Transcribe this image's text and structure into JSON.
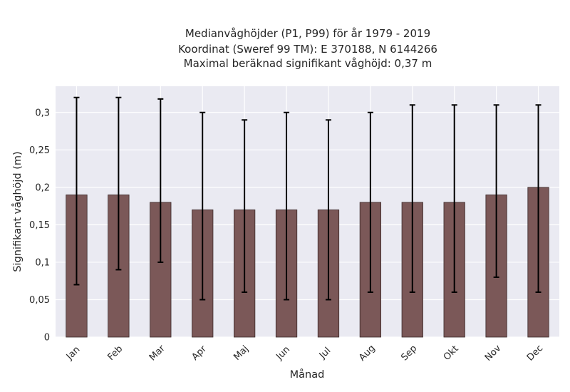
{
  "chart_data": {
    "type": "bar",
    "title_lines": [
      "Medianvåghöjder (P1, P99) för år 1979 - 2019",
      "Koordinat (Sweref 99 TM): E 370188, N 6144266",
      "Maximal beräknad signifikant våghöjd: 0,37 m"
    ],
    "xlabel": "Månad",
    "ylabel": "Signifikant våghöjd (m)",
    "categories": [
      "Jan",
      "Feb",
      "Mar",
      "Apr",
      "Maj",
      "Jun",
      "Jul",
      "Aug",
      "Sep",
      "Okt",
      "Nov",
      "Dec"
    ],
    "values": [
      0.19,
      0.19,
      0.18,
      0.17,
      0.17,
      0.17,
      0.17,
      0.18,
      0.18,
      0.18,
      0.19,
      0.2
    ],
    "p1": [
      0.07,
      0.09,
      0.1,
      0.05,
      0.06,
      0.05,
      0.05,
      0.06,
      0.06,
      0.06,
      0.08,
      0.06
    ],
    "p99": [
      0.32,
      0.32,
      0.318,
      0.3,
      0.29,
      0.3,
      0.29,
      0.3,
      0.31,
      0.31,
      0.31,
      0.31
    ],
    "ylim": [
      0,
      0.335
    ],
    "yticks": [
      0,
      0.05,
      0.1,
      0.15,
      0.2,
      0.25,
      0.3
    ],
    "ytick_labels": [
      "0",
      "0,05",
      "0,1",
      "0,15",
      "0,2",
      "0,25",
      "0,3"
    ],
    "grid": true,
    "colors": {
      "bar": "#7b5858",
      "bar_edge": "#3a2a2a",
      "error_bar": "#000000",
      "plot_background": "#eaeaf2",
      "grid": "#ffffff"
    }
  }
}
